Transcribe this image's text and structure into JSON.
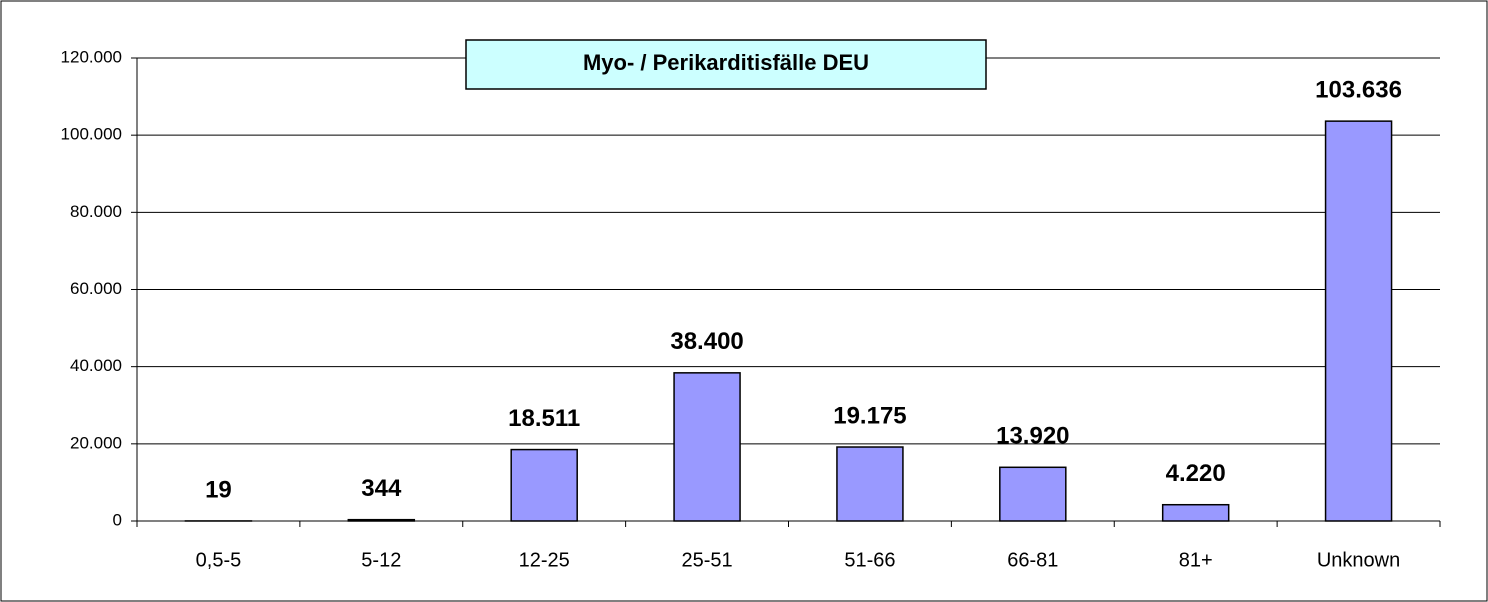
{
  "chart_data": {
    "type": "bar",
    "title": "Myo- / Perikarditisfälle DEU",
    "categories": [
      "0,5-5",
      "5-12",
      "12-25",
      "25-51",
      "51-66",
      "66-81",
      "81+",
      "Unknown"
    ],
    "values": [
      19,
      344,
      18511,
      38400,
      19175,
      13920,
      4220,
      103636
    ],
    "value_labels": [
      "19",
      "344",
      "18.511",
      "38.400",
      "19.175",
      "13.920",
      "4.220",
      "103.636"
    ],
    "color": "#9999ff",
    "ylim": [
      0,
      120000
    ],
    "yticks": [
      0,
      {
        "value": 20000,
        "label": "20.000"
      },
      {
        "value": 40000,
        "label": "40.000"
      },
      {
        "value": 60000,
        "label": "60.000"
      },
      {
        "value": 80000,
        "label": "80.000"
      },
      {
        "value": 100000,
        "label": "100.000"
      },
      {
        "value": 120000,
        "label": "120.000"
      }
    ],
    "grid": true
  }
}
